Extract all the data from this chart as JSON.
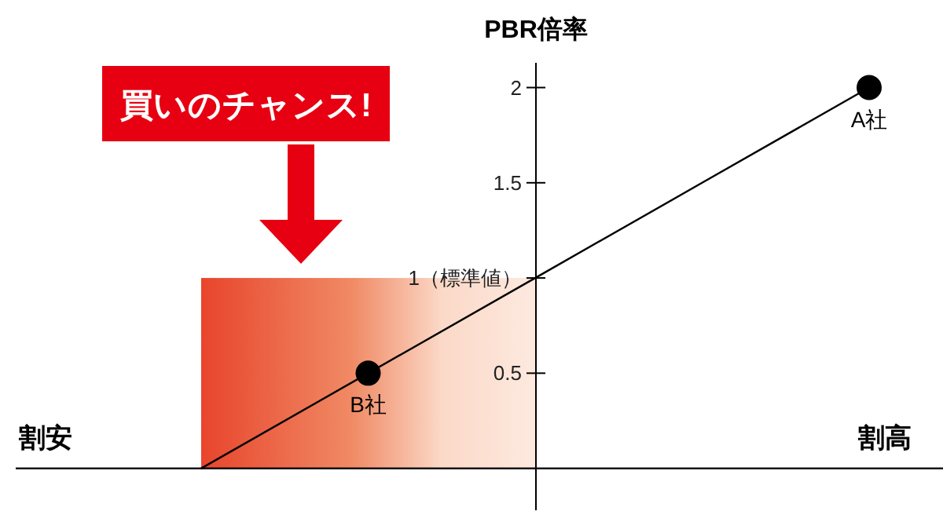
{
  "chart_data": {
    "type": "line",
    "ylabel": "PBR倍率",
    "categories": [
      null,
      null,
      null,
      null,
      null
    ],
    "series": [
      {
        "type": "line",
        "color": "#000000",
        "marker": "none",
        "values": [
          0,
          0.5,
          1,
          1.5,
          2
        ]
      },
      {
        "type": "scatter",
        "color": "#000000",
        "marker": "circle",
        "values": [
          null,
          0.5,
          null,
          null,
          2
        ]
      }
    ],
    "ylim": [
      -0.22,
      2.13
    ],
    "yticks": [
      0.5,
      {
        "value": 1,
        "label": "1（標準値）"
      },
      1.5,
      2
    ],
    "tick_labels": "y",
    "annotations": [
      "買いのチャンス!",
      "割安",
      "割高",
      {
        "text": "B社",
        "y": 0.5
      },
      {
        "text": "A社",
        "y": 2
      }
    ]
  }
}
